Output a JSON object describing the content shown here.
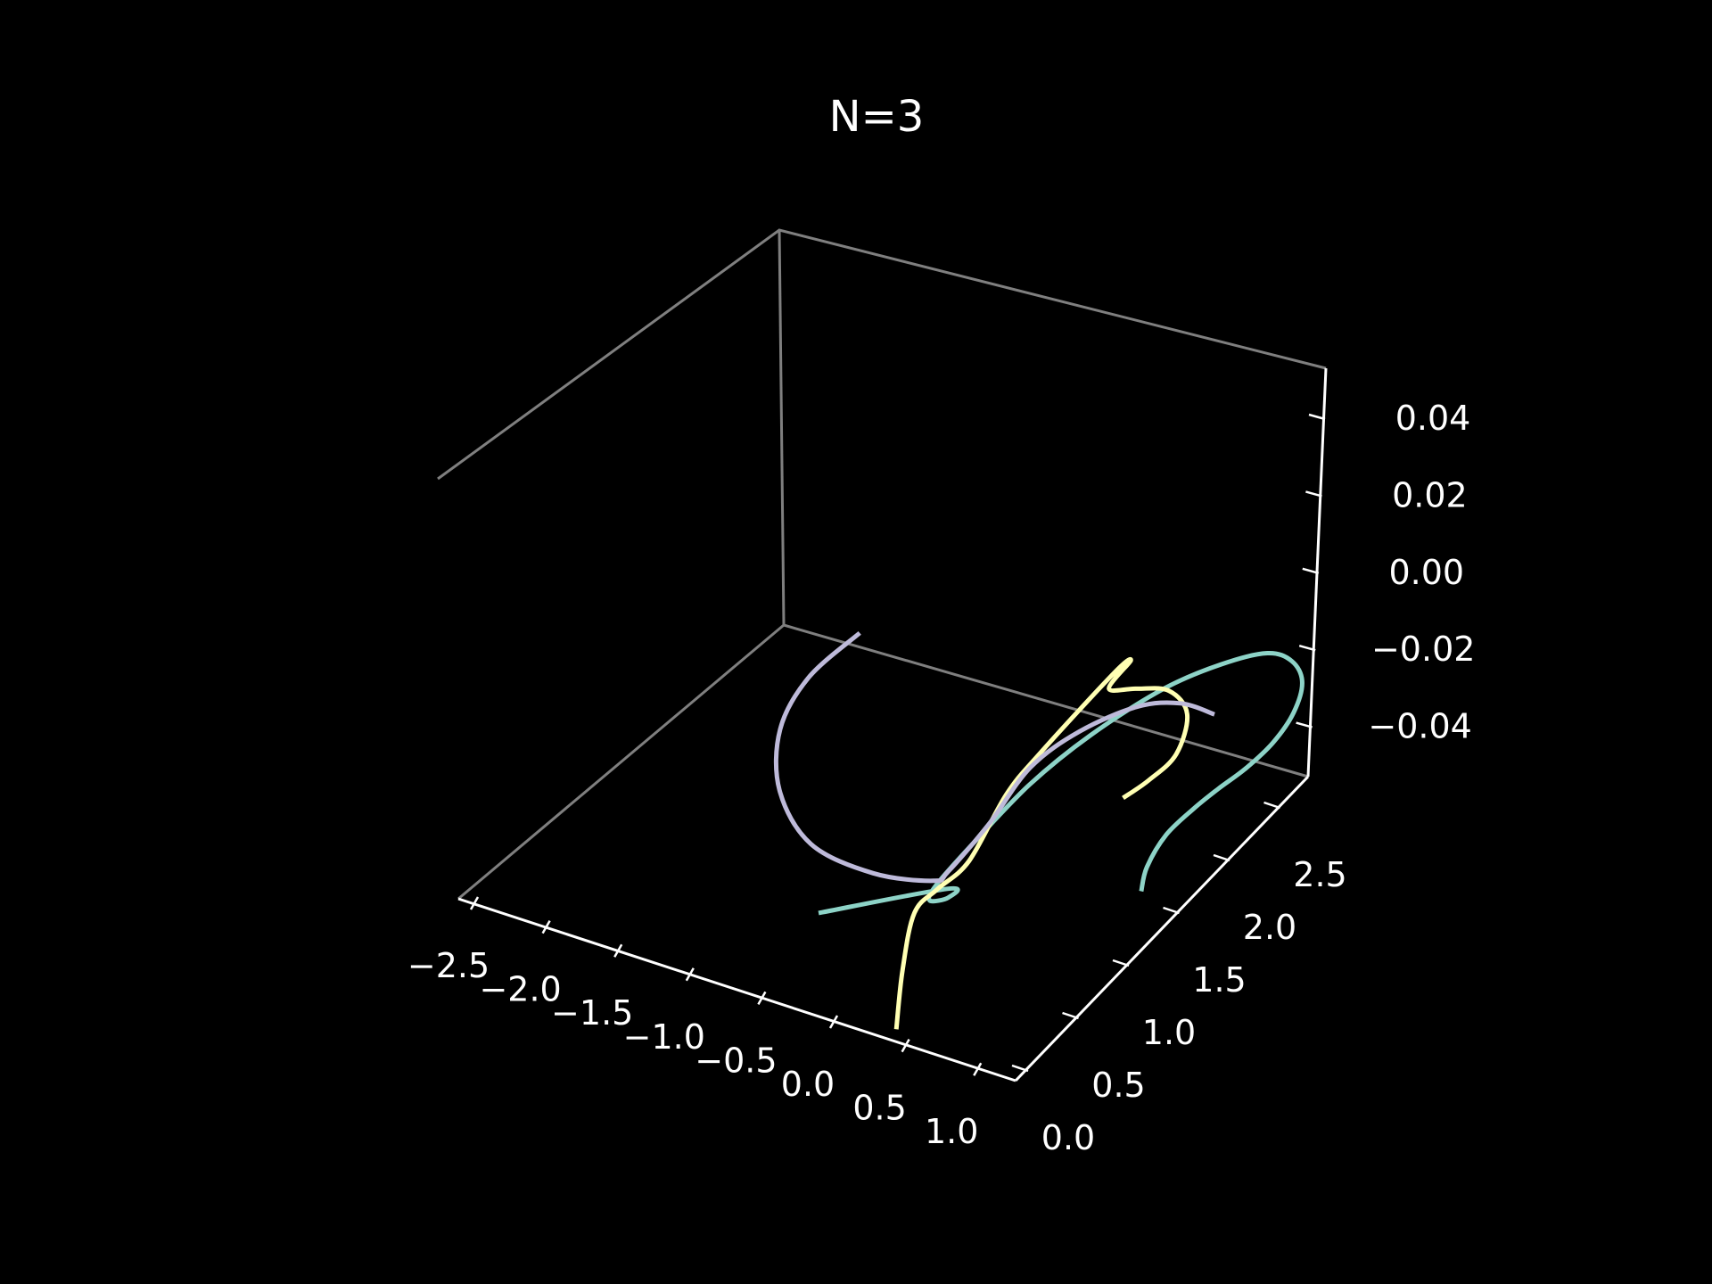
{
  "chart_data": {
    "type": "line3d",
    "title": "N=3",
    "xlabel": "",
    "ylabel": "",
    "zlabel": "",
    "grid": false,
    "background": "#000000",
    "x_ticks": [
      "−2.5",
      "−2.0",
      "−1.5",
      "−1.0",
      "−0.5",
      "0.0",
      "0.5",
      "1.0"
    ],
    "y_ticks": [
      "0.0",
      "0.5",
      "1.0",
      "1.5",
      "2.0",
      "2.5"
    ],
    "z_ticks": [
      "0.04",
      "0.02",
      "0.00",
      "−0.02",
      "−0.04"
    ],
    "series": [
      {
        "color": "#8dd3c7",
        "points": [
          [
            1.05,
            1.35
          ],
          [
            0.97,
            1.5
          ],
          [
            0.95,
            1.72
          ],
          [
            1.02,
            1.92
          ],
          [
            1.1,
            2.08
          ],
          [
            1.2,
            2.25
          ],
          [
            1.27,
            2.45
          ],
          [
            1.27,
            2.66
          ],
          [
            1.18,
            2.85
          ],
          [
            1.0,
            2.95
          ],
          [
            0.78,
            2.95
          ],
          [
            0.5,
            2.8
          ],
          [
            0.2,
            2.55
          ],
          [
            -0.1,
            2.15
          ],
          [
            -0.3,
            1.75
          ],
          [
            -0.42,
            1.3
          ],
          [
            -0.48,
            1.0
          ],
          [
            -0.45,
            0.9
          ],
          [
            -0.33,
            0.95
          ],
          [
            -0.38,
            1.0
          ],
          [
            -1.2,
            0.62
          ]
        ]
      },
      {
        "color": "#ffffb3",
        "points": [
          [
            0.45,
            1.85
          ],
          [
            0.55,
            2.0
          ],
          [
            0.62,
            2.2
          ],
          [
            0.5,
            2.45
          ],
          [
            0.25,
            2.55
          ],
          [
            0.0,
            2.5
          ],
          [
            -0.2,
            2.45
          ],
          [
            -0.18,
            2.65
          ],
          [
            -0.24,
            2.55
          ],
          [
            -0.38,
            1.95
          ],
          [
            -0.42,
            1.65
          ],
          [
            -0.36,
            1.2
          ],
          [
            -0.45,
            0.98
          ],
          [
            -0.5,
            0.8
          ],
          [
            -0.3,
            0.45
          ],
          [
            -0.05,
            0.1
          ]
        ]
      },
      {
        "color": "#bebada",
        "points": [
          [
            0.7,
            2.5
          ],
          [
            0.4,
            2.5
          ],
          [
            0.1,
            2.4
          ],
          [
            -0.2,
            2.15
          ],
          [
            -0.38,
            1.85
          ],
          [
            -0.4,
            1.45
          ],
          [
            -0.46,
            1.1
          ],
          [
            -0.52,
            1.02
          ],
          [
            -1.0,
            0.95
          ],
          [
            -1.6,
            1.0
          ],
          [
            -2.1,
            1.25
          ],
          [
            -2.4,
            1.6
          ],
          [
            -2.45,
            1.95
          ],
          [
            -2.3,
            2.3
          ]
        ]
      }
    ]
  }
}
